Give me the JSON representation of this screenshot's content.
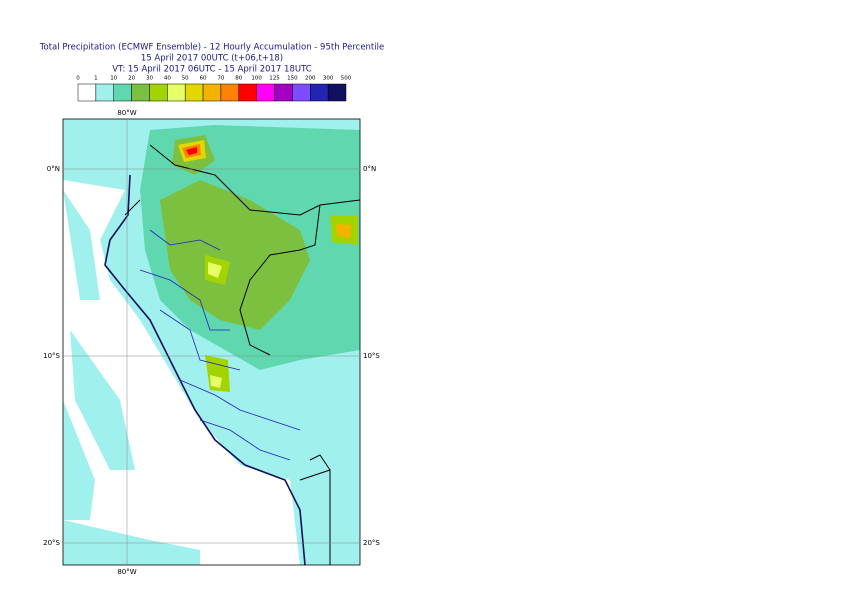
{
  "header": {
    "title": "Total Precipitation (ECMWF Ensemble) - 12 Hourly Accumulation - 95th Percentile",
    "line2": "15 April 2017 00UTC (t+06,t+18)",
    "line3": "VT: 15 April 2017 06UTC - 15 April 2017 18UTC"
  },
  "legend": {
    "labels": [
      0,
      1,
      10,
      20,
      30,
      40,
      50,
      60,
      70,
      80,
      100,
      125,
      150,
      200,
      300,
      500
    ],
    "colors": [
      "#ffffff",
      "#a0f0ee",
      "#5fd8b0",
      "#7cc040",
      "#a2d400",
      "#e6ff66",
      "#e2d800",
      "#f2b400",
      "#ff8200",
      "#ff0000",
      "#ff00ff",
      "#a400c4",
      "#7c4cff",
      "#2424b4",
      "#10105e"
    ]
  },
  "map": {
    "grid": {
      "lat_labels": [
        "0°N",
        "10°S",
        "20°S"
      ],
      "lon_labels": [
        "80°W"
      ]
    }
  }
}
